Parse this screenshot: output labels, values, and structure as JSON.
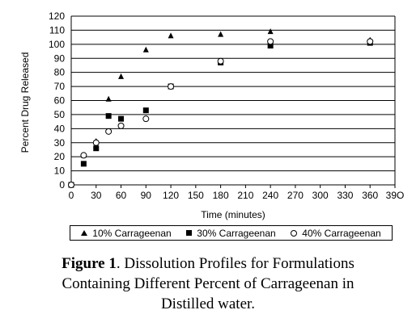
{
  "chart_data": {
    "type": "scatter",
    "xlabel": "Time (minutes)",
    "ylabel": "Percent Drug Released",
    "xlim": [
      0,
      390
    ],
    "ylim": [
      0,
      120
    ],
    "x_ticks": [
      0,
      30,
      60,
      90,
      120,
      150,
      180,
      210,
      240,
      270,
      300,
      330,
      360,
      "39O"
    ],
    "y_ticks": [
      0,
      10,
      20,
      30,
      40,
      50,
      60,
      70,
      80,
      90,
      100,
      110,
      120
    ],
    "grid": "horizontal",
    "legend_position": "bottom",
    "series": [
      {
        "name": "10% Carrageenan",
        "marker": "triangle",
        "points": [
          [
            0,
            0
          ],
          [
            15,
            21
          ],
          [
            30,
            31
          ],
          [
            45,
            61
          ],
          [
            60,
            77
          ],
          [
            90,
            96
          ],
          [
            120,
            106
          ],
          [
            180,
            107
          ],
          [
            240,
            109
          ],
          [
            360,
            103
          ]
        ]
      },
      {
        "name": "30% Carrageenan",
        "marker": "square",
        "points": [
          [
            0,
            0
          ],
          [
            15,
            15
          ],
          [
            30,
            26
          ],
          [
            45,
            49
          ],
          [
            60,
            47
          ],
          [
            90,
            53
          ],
          [
            120,
            70
          ],
          [
            180,
            87
          ],
          [
            240,
            99
          ],
          [
            360,
            101
          ]
        ]
      },
      {
        "name": "40% Carrageenan",
        "marker": "circle",
        "points": [
          [
            0,
            0
          ],
          [
            15,
            21
          ],
          [
            30,
            30
          ],
          [
            45,
            38
          ],
          [
            60,
            42
          ],
          [
            90,
            47
          ],
          [
            120,
            70
          ],
          [
            180,
            88
          ],
          [
            240,
            102
          ],
          [
            360,
            102
          ]
        ]
      }
    ]
  },
  "caption": {
    "bold": "Figure 1",
    "line1": ". Dissolution Profiles for Formulations",
    "line2": "Containing Different Percent of Carrageenan in",
    "line3": "Distilled water."
  }
}
